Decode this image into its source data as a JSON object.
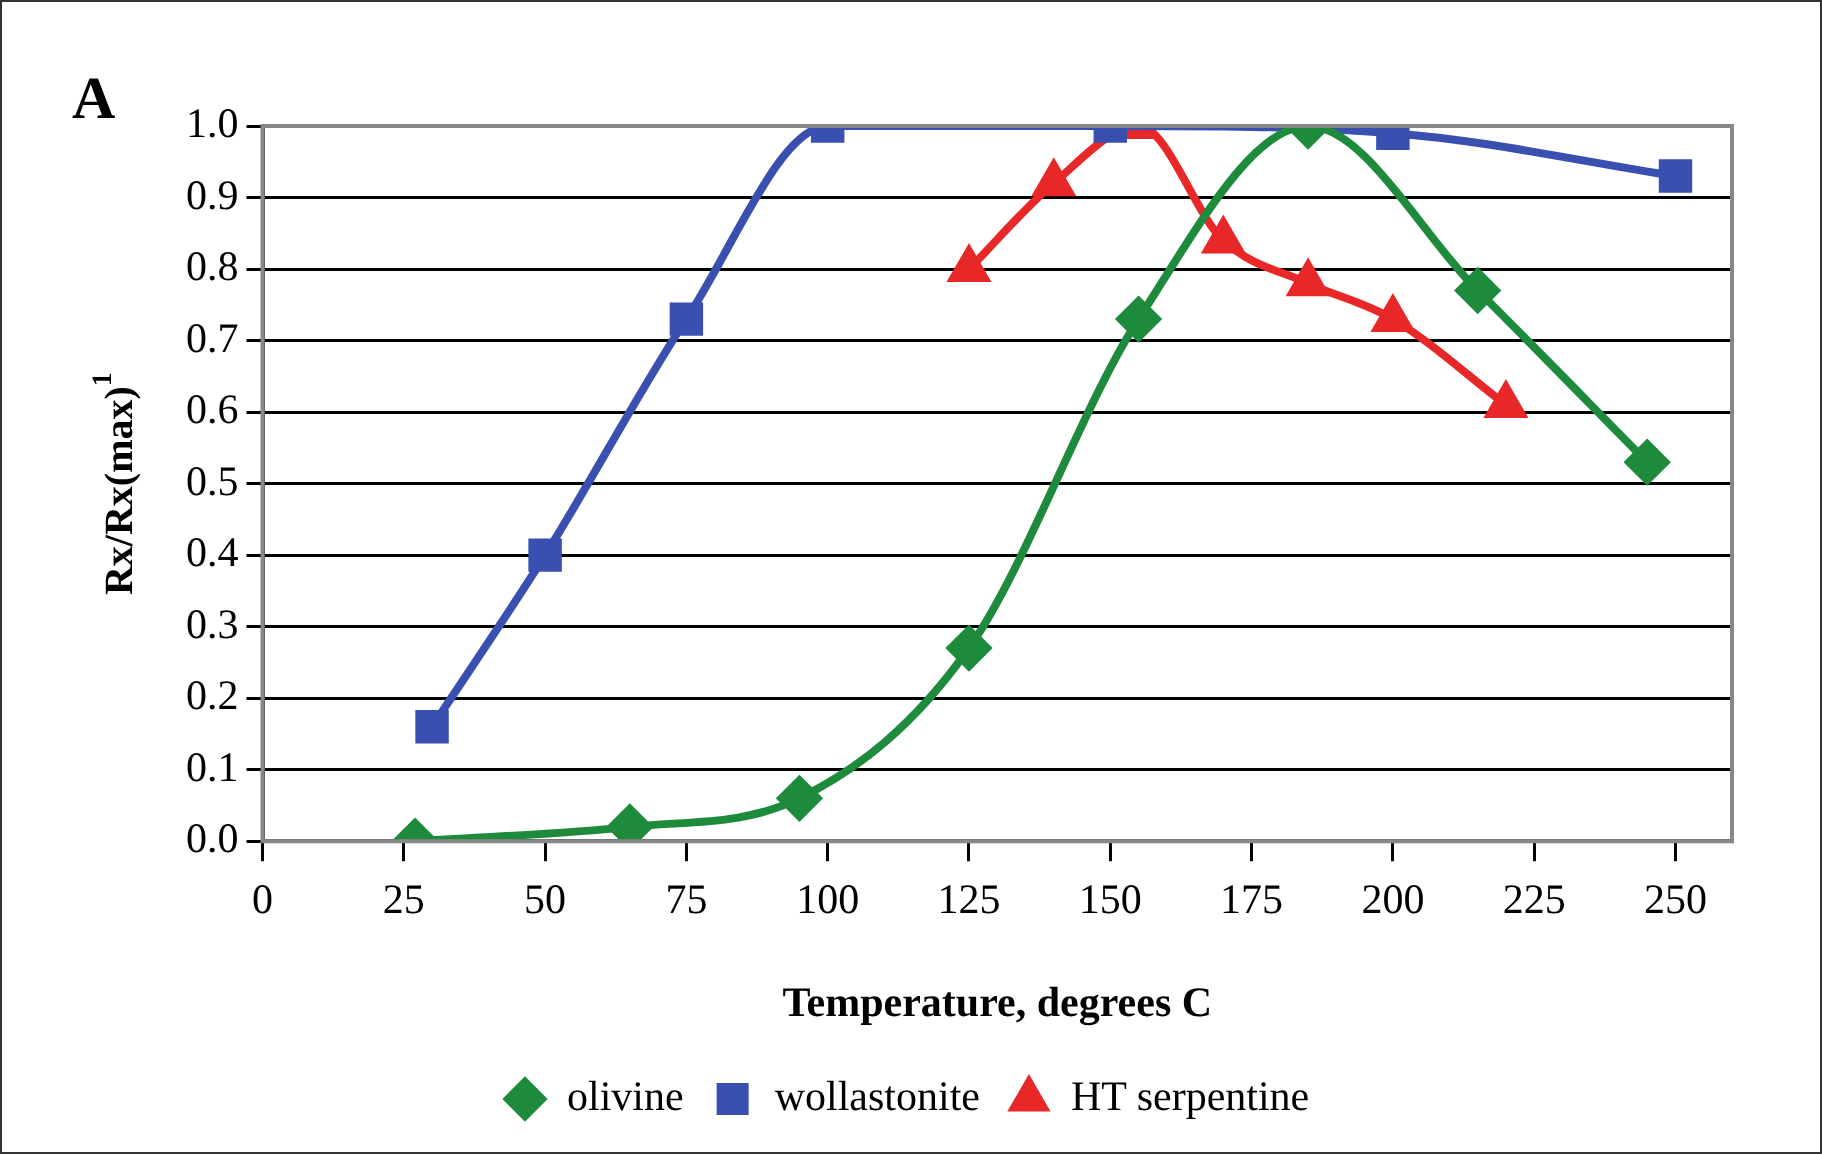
{
  "chart_data": {
    "type": "line",
    "title": "A",
    "xlabel": "Temperature, degrees C",
    "ylabel": "Rx/Rx(max)$^{1}$",
    "series": [
      {
        "name": "olivine",
        "color": "#1e8a3c",
        "marker": "diamond",
        "x": [
          27,
          65,
          95,
          125,
          155,
          185,
          215,
          245
        ],
        "values": [
          0.0,
          0.02,
          0.06,
          0.27,
          0.73,
          1.0,
          0.77,
          0.53
        ]
      },
      {
        "name": "wollastonite",
        "color": "#3a50b0",
        "marker": "square",
        "x": [
          30,
          50,
          75,
          100,
          150,
          200,
          250
        ],
        "values": [
          0.16,
          0.4,
          0.73,
          1.0,
          1.0,
          0.99,
          0.93
        ]
      },
      {
        "name": "HT serpentine",
        "color": "#e82828",
        "marker": "triangle",
        "x": [
          125,
          140,
          155,
          170,
          185,
          200,
          220
        ],
        "values": [
          0.8,
          0.92,
          1.0,
          0.84,
          0.78,
          0.73,
          0.61
        ]
      }
    ],
    "xlim": [
      0,
      260
    ],
    "xticks": [
      0,
      25,
      50,
      75,
      100,
      125,
      150,
      175,
      200,
      225,
      250
    ],
    "ylim": [
      0,
      1
    ],
    "yticks": [
      {
        "value": 0,
        "label": "0.0"
      },
      {
        "value": 0.1,
        "label": "0.1"
      },
      {
        "value": 0.2,
        "label": "0.2"
      },
      {
        "value": 0.3,
        "label": "0.3"
      },
      {
        "value": 0.4,
        "label": "0.4"
      },
      {
        "value": 0.5,
        "label": "0.5"
      },
      {
        "value": 0.6,
        "label": "0.6"
      },
      {
        "value": 0.7,
        "label": "0.7"
      },
      {
        "value": 0.8,
        "label": "0.8"
      },
      {
        "value": 0.9,
        "label": "0.9"
      },
      {
        "value": 1,
        "label": "1.0"
      }
    ],
    "grid": "y",
    "legend": "bottom",
    "line_style": "solid"
  }
}
